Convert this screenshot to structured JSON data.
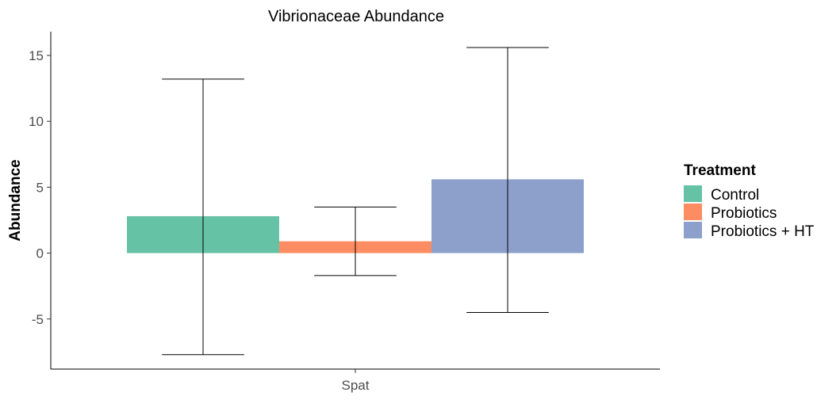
{
  "chart_data": {
    "type": "bar",
    "title": "Vibrionaceae Abundance",
    "xlabel": "",
    "ylabel": "Abundance",
    "categories": [
      "Spat"
    ],
    "ylim": [
      -8.8,
      16.8
    ],
    "yticks": [
      -5,
      0,
      5,
      10,
      15
    ],
    "ytick_labels": [
      "-5",
      "0",
      "5",
      "10",
      "15"
    ],
    "grid": false,
    "legend_position": "right",
    "legend_title": "Treatment",
    "series": [
      {
        "name": "Control",
        "color": "#66c2a5",
        "values": [
          2.8
        ],
        "error_low": [
          -7.7
        ],
        "error_high": [
          13.2
        ]
      },
      {
        "name": "Probiotics",
        "color": "#fc8d62",
        "values": [
          0.9
        ],
        "error_low": [
          -1.7
        ],
        "error_high": [
          3.5
        ]
      },
      {
        "name": "Probiotics + HT",
        "color": "#8da0cb",
        "values": [
          5.6
        ],
        "error_low": [
          -4.5
        ],
        "error_high": [
          15.6
        ]
      }
    ]
  }
}
